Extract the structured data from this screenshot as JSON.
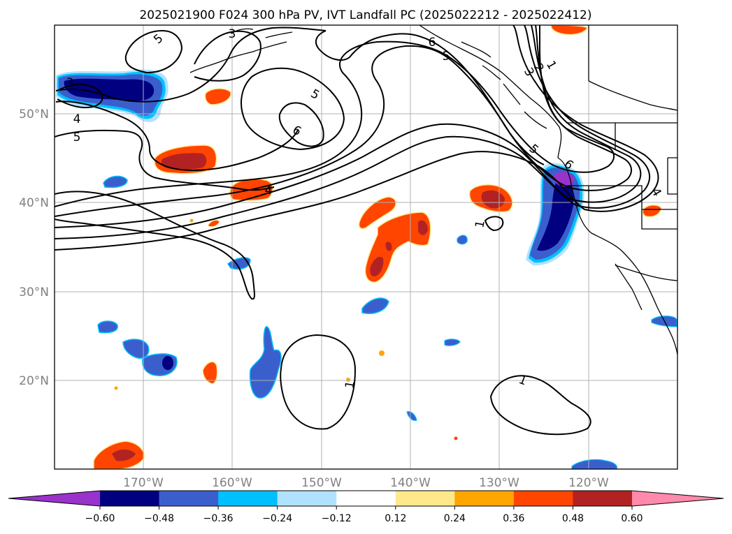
{
  "title": "2025021900 F024 300 hPa PV, IVT Landfall PC (2025022212 - 2025022412)",
  "map": {
    "projection": "plate-carree",
    "lon_range": [
      -180,
      -110
    ],
    "lat_range": [
      10,
      60
    ],
    "gridlines": true,
    "lat_labels": [
      "20°N",
      "30°N",
      "40°N",
      "50°N"
    ],
    "lon_labels": [
      "170°W",
      "160°W",
      "150°W",
      "140°W",
      "130°W",
      "120°W"
    ],
    "contour_labels": [
      "5",
      "3",
      "6",
      "5",
      "3",
      "2",
      "1",
      "3",
      "4",
      "5",
      "5",
      "6",
      "4",
      "5",
      "6",
      "4",
      "1",
      "1",
      "1"
    ],
    "contour_color": "#000000",
    "coastline_color": "#000000"
  },
  "colorbar": {
    "orientation": "horizontal",
    "extend": "both",
    "ticks": [
      "−0.60",
      "−0.48",
      "−0.36",
      "−0.24",
      "−0.12",
      "0.12",
      "0.24",
      "0.36",
      "0.48",
      "0.60"
    ],
    "colors": [
      "#9933cc",
      "#000080",
      "#3a5fcd",
      "#00bfff",
      "#b0e2ff",
      "#ffffff",
      "#fde98a",
      "#ffa500",
      "#ff4500",
      "#b22222",
      "#ff8aab"
    ]
  },
  "chart_data": {
    "type": "heatmap",
    "title": "2025021900 F024 300 hPa PV, IVT Landfall PC (2025022212 - 2025022412)",
    "field_filled": "IVT Landfall PC",
    "field_contoured": "300 hPa PV",
    "color_levels": [
      -0.6,
      -0.48,
      -0.36,
      -0.24,
      -0.12,
      0.12,
      0.24,
      0.36,
      0.48,
      0.6
    ],
    "contour_levels": [
      1,
      2,
      3,
      4,
      5,
      6
    ],
    "xlim": [
      -180,
      -110
    ],
    "ylim": [
      10,
      60
    ],
    "x_ticks": [
      -170,
      -160,
      -150,
      -140,
      -130,
      -120
    ],
    "y_ticks": [
      20,
      30,
      40,
      50
    ],
    "features": [
      {
        "name": "west-pacific-negative-core",
        "lon": -171,
        "lat": 52.5,
        "value": -0.6
      },
      {
        "name": "offshore-california-negative",
        "lon": -123,
        "lat": 38,
        "value": -0.6
      },
      {
        "name": "positive-blob-central",
        "lon": -138,
        "lat": 36,
        "value": 0.48
      },
      {
        "name": "positive-blob-north",
        "lon": -164,
        "lat": 45,
        "value": 0.48
      },
      {
        "name": "positive-blob-east",
        "lon": -131,
        "lat": 40.5,
        "value": 0.48
      },
      {
        "name": "pv-ridge-max",
        "lon": -151,
        "lat": 48,
        "value": 6
      }
    ]
  }
}
